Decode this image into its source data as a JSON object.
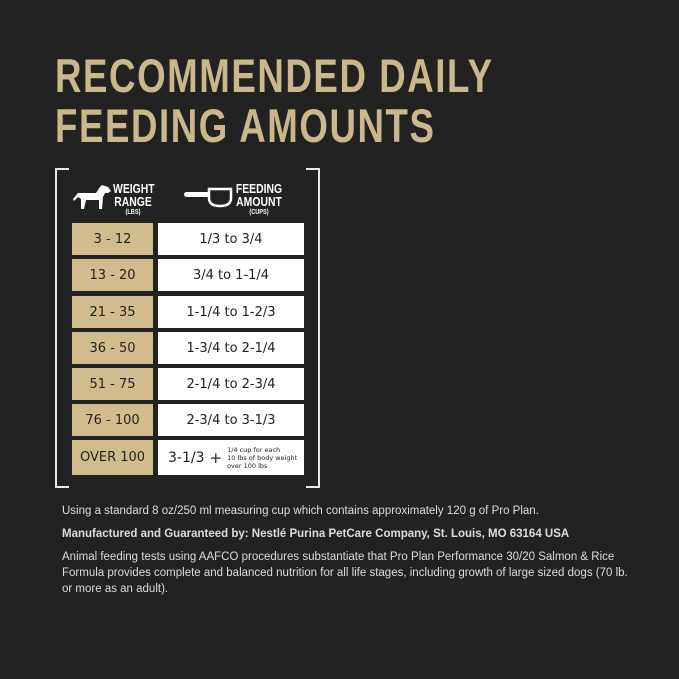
{
  "title": {
    "line1": "RECOMMENDED DAILY",
    "line2": "FEEDING AMOUNTS"
  },
  "table": {
    "weight_header": {
      "label1": "WEIGHT",
      "label2": "RANGE",
      "unit": "(LBS)",
      "icon": "dog-icon"
    },
    "amount_header": {
      "label1": "FEEDING",
      "label2": "AMOUNT",
      "unit": "(CUPS)",
      "icon": "measuring-cup-icon"
    },
    "rows": [
      {
        "weight": "3 - 12",
        "amount": "1/3 to 3/4"
      },
      {
        "weight": "13 - 20",
        "amount": "3/4 to 1-1/4"
      },
      {
        "weight": "21 - 35",
        "amount": "1-1/4 to 1-2/3"
      },
      {
        "weight": "36 - 50",
        "amount": "1-3/4 to 2-1/4"
      },
      {
        "weight": "51 - 75",
        "amount": "2-1/4 to 2-3/4"
      },
      {
        "weight": "76 - 100",
        "amount": "2-3/4 to 3-1/3"
      }
    ],
    "last_row": {
      "weight": "OVER 100",
      "amount": "3-1/3",
      "plus": "+",
      "note1": "1/4 cup for each",
      "note2": "10 lbs of body weight",
      "note3": "over 100 lbs"
    }
  },
  "notes": {
    "cup": "Using a standard 8 oz/250 ml measuring cup which contains approximately 120 g of Pro Plan.",
    "manufacturer": "Manufactured and Guaranteed by: Nestlé Purina PetCare Company, St. Louis, MO 63164 USA",
    "aafco": "Animal feeding tests using AAFCO procedures substantiate that Pro Plan Performance 30/20 Salmon & Rice Formula provides complete and balanced nutrition for all life stages, including growth of large sized dogs (70 lb. or more as an adult)."
  },
  "colors": {
    "background": "#222222",
    "gold": "#c9b88b",
    "cell_gold": "#d0bc8c"
  }
}
